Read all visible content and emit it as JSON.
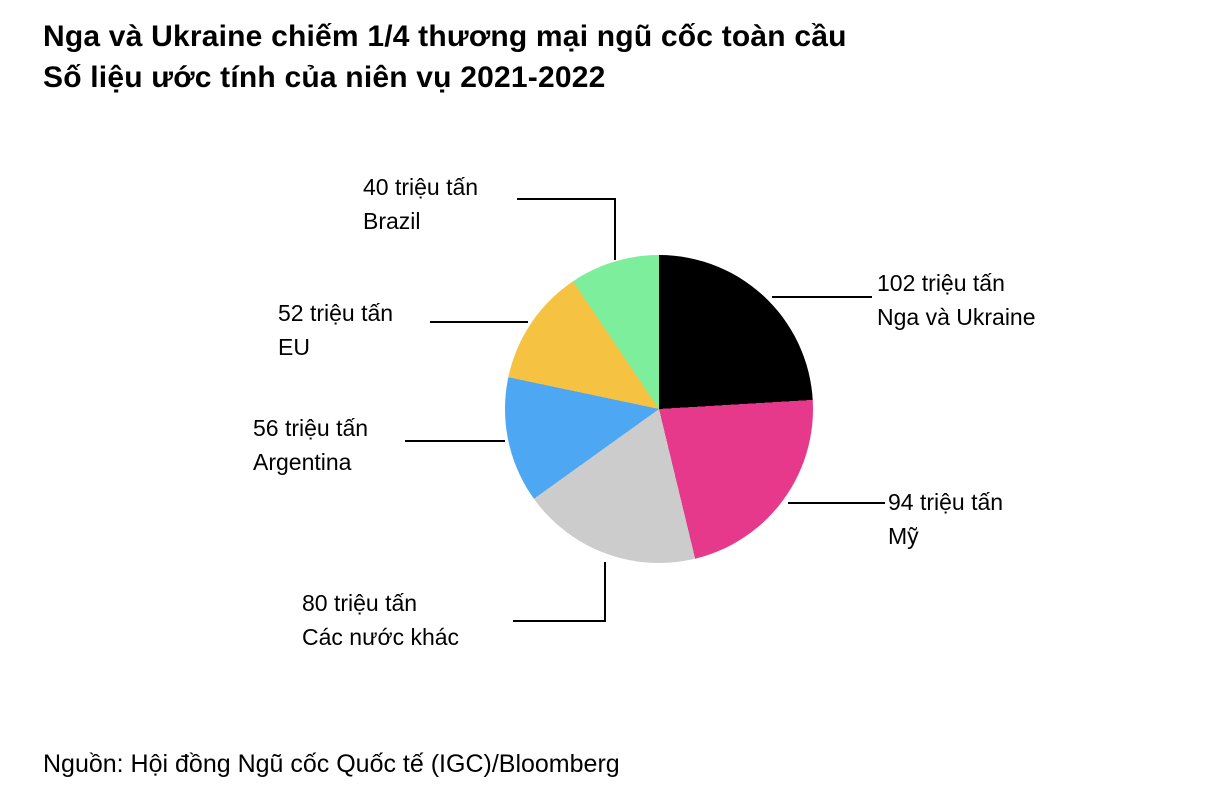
{
  "title": {
    "line1": "Nga và Ukraine chiếm 1/4 thương mại ngũ cốc toàn cầu",
    "line2": "Số liệu ước tính của niên vụ 2021-2022"
  },
  "source": "Nguồn: Hội đồng Ngũ cốc Quốc tế (IGC)/Bloomberg",
  "chart_data": {
    "type": "pie",
    "title": "Nga và Ukraine chiếm 1/4 thương mại ngũ cốc toàn cầu — Số liệu ước tính của niên vụ 2021-2022",
    "unit": "triệu tấn",
    "total": 424,
    "start_angle_deg": 0,
    "direction": "clockwise",
    "legend_position": "callout-labels",
    "slices": [
      {
        "label": "Nga và Ukraine",
        "value": 102,
        "value_label": "102 triệu tấn",
        "color": "#000000"
      },
      {
        "label": "Mỹ",
        "value": 94,
        "value_label": "94 triệu tấn",
        "color": "#E6398B"
      },
      {
        "label": "Các nước khác",
        "value": 80,
        "value_label": "80 triệu tấn",
        "color": "#CCCCCC"
      },
      {
        "label": "Argentina",
        "value": 56,
        "value_label": "56 triệu tấn",
        "color": "#4DA7F2"
      },
      {
        "label": "EU",
        "value": 52,
        "value_label": "52 triệu tấn",
        "color": "#F5C242"
      },
      {
        "label": "Brazil",
        "value": 40,
        "value_label": "40 triệu tấn",
        "color": "#7DEE9B"
      }
    ]
  }
}
